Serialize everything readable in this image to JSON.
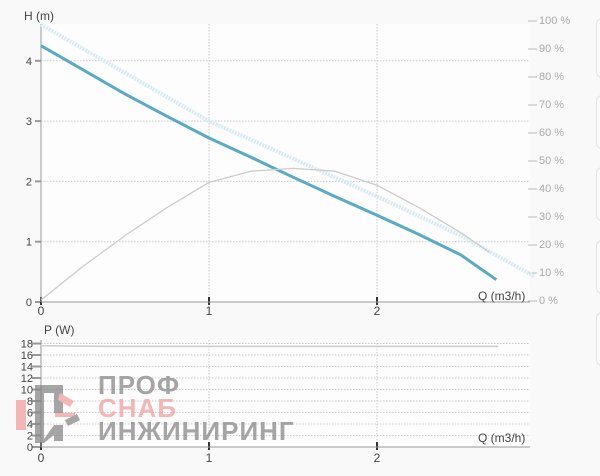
{
  "chart_data": [
    {
      "type": "line",
      "ylabel": "H (m)",
      "xlabel": "Q (m3/h)",
      "xlim": [
        0,
        3
      ],
      "ylim": [
        0,
        4.6
      ],
      "x_ticks": [
        "0",
        "1",
        "2"
      ],
      "y_ticks": [
        "0",
        "1",
        "2",
        "3",
        "4"
      ],
      "y2_ticks": [
        "0 %",
        "10 %",
        "20 %",
        "30 %",
        "40 %",
        "50 %",
        "60 %",
        "70 %",
        "80 %",
        "90 %",
        "100 %"
      ],
      "y2lim": [
        0,
        100
      ],
      "grid": true,
      "series": [
        {
          "axis": "H",
          "color": "#5aaac4",
          "style": "solid",
          "x": [
            0,
            0.25,
            0.5,
            0.75,
            1,
            1.25,
            1.5,
            1.75,
            2,
            2.25,
            2.5,
            2.71
          ],
          "y": [
            4.25,
            3.85,
            3.45,
            3.08,
            2.72,
            2.4,
            2.07,
            1.75,
            1.44,
            1.12,
            0.78,
            0.37
          ]
        },
        {
          "axis": "H",
          "color": "#d6ecf4",
          "style": "dashed",
          "x": [
            0,
            0.5,
            1,
            1.5,
            2,
            2.5,
            2.94
          ],
          "y": [
            4.6,
            3.8,
            3.0,
            2.38,
            1.75,
            1.1,
            0.42
          ]
        },
        {
          "axis": "eta",
          "color": "#cccccc",
          "style": "solid",
          "x": [
            0,
            0.25,
            0.5,
            0.75,
            1,
            1.25,
            1.5,
            1.75,
            2,
            2.25,
            2.5,
            2.67
          ],
          "y": [
            0,
            12,
            23,
            33,
            42,
            46,
            47,
            46,
            41,
            33,
            24,
            17
          ]
        }
      ]
    },
    {
      "type": "line",
      "ylabel": "P (W)",
      "xlabel": "Q (m3/h)",
      "xlim": [
        0,
        3
      ],
      "ylim": [
        0,
        18
      ],
      "x_ticks": [
        "0",
        "1",
        "2"
      ],
      "y_ticks": [
        "0",
        "2",
        "4",
        "6",
        "8",
        "10",
        "12",
        "14",
        "16",
        "18"
      ],
      "grid": true,
      "series": [
        {
          "color": "#cccccc",
          "style": "solid",
          "x": [
            0,
            0.4,
            1,
            2,
            2.72
          ],
          "y": [
            17.6,
            17.5,
            17.5,
            17.5,
            17.5
          ]
        }
      ]
    }
  ],
  "watermark": {
    "lines": [
      "ПРОФ",
      "СНАБ",
      "ИНЖИНИРИНГ"
    ]
  }
}
